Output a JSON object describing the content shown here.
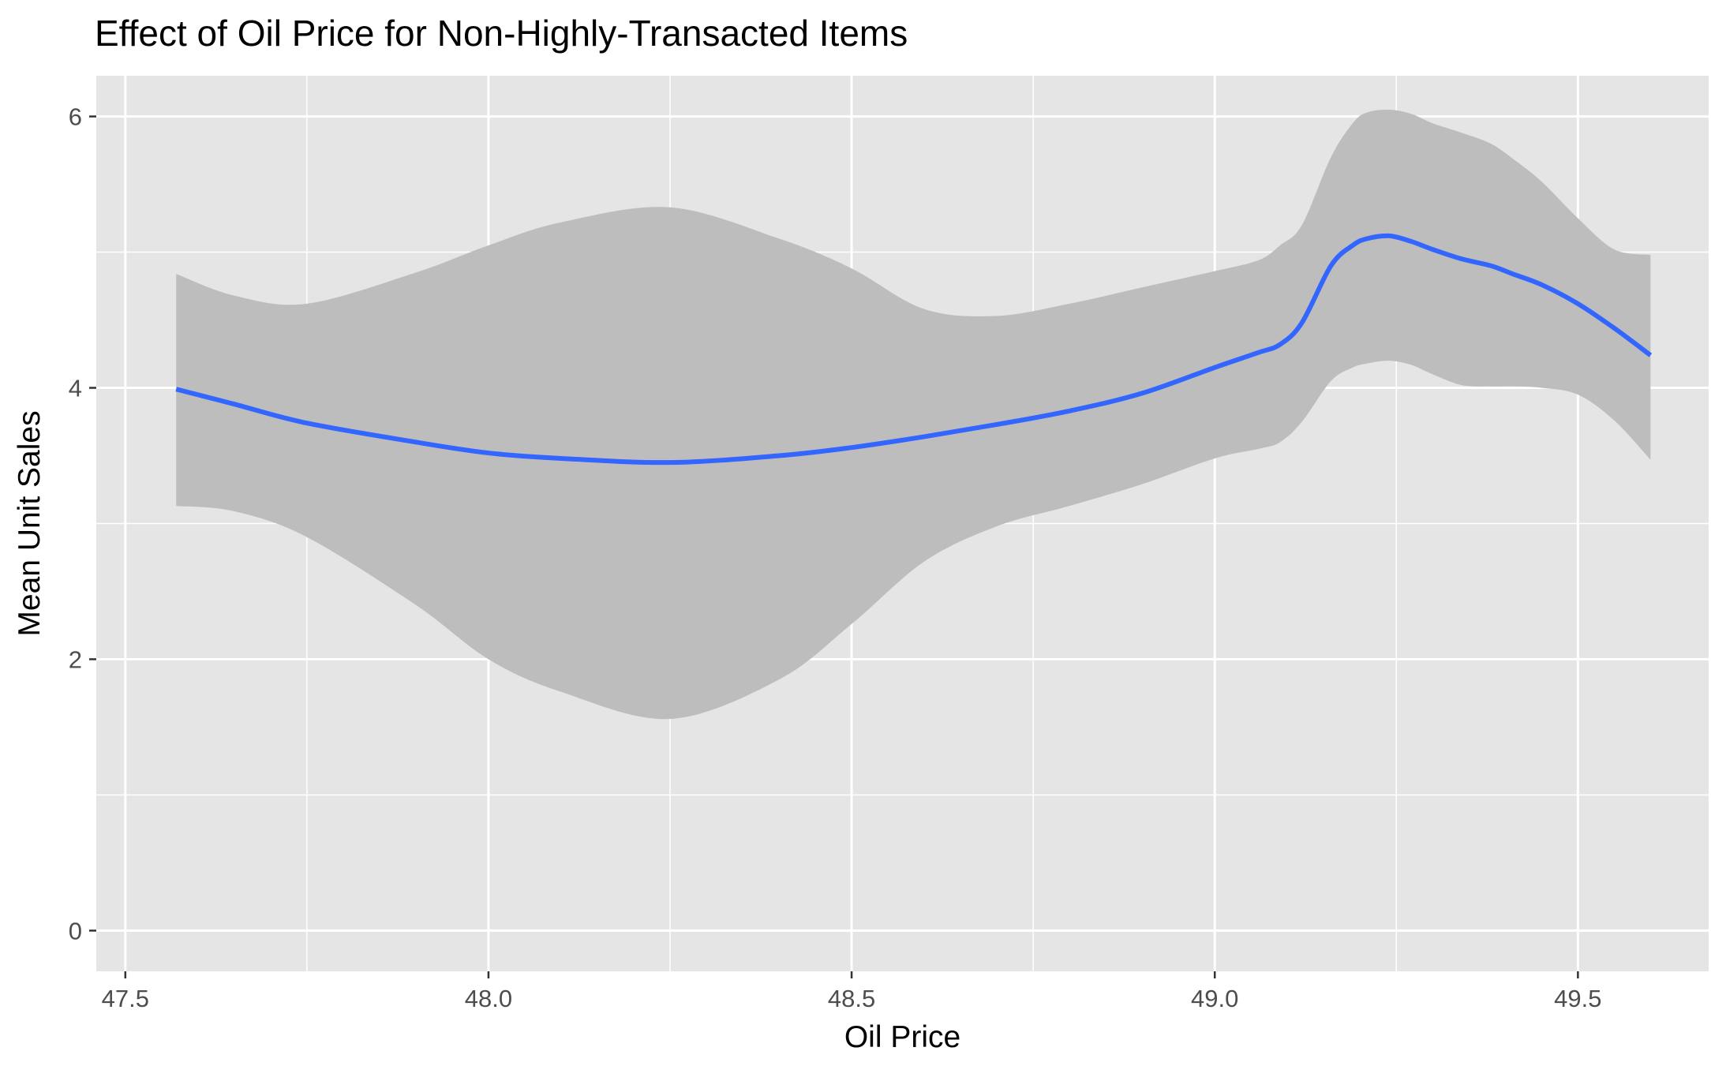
{
  "chart_data": {
    "type": "line",
    "title": "Effect of Oil Price for Non-Highly-Transacted Items",
    "xlabel": "Oil Price",
    "ylabel": "Mean Unit Sales",
    "xlim": [
      47.46,
      49.68
    ],
    "ylim": [
      -0.3,
      6.3
    ],
    "x_ticks": [
      47.5,
      48.0,
      48.5,
      49.0,
      49.5
    ],
    "x_tick_labels": [
      "47.5",
      "48.0",
      "48.5",
      "49.0",
      "49.5"
    ],
    "y_ticks": [
      0,
      2,
      4,
      6
    ],
    "y_tick_labels": [
      "0",
      "2",
      "4",
      "6"
    ],
    "grid": true,
    "legend": "none",
    "colors": {
      "panel_background": "#e5e5e5",
      "grid": "#ffffff",
      "line": "#3366ff",
      "ribbon": "#bdbdbd"
    },
    "series": [
      {
        "x": [
          47.57,
          47.65,
          47.75,
          47.9,
          48.0,
          48.1,
          48.25,
          48.4,
          48.5,
          48.6,
          48.7,
          48.8,
          48.9,
          49.0,
          49.06,
          49.09,
          49.12,
          49.16,
          49.19,
          49.21,
          49.24,
          49.27,
          49.3,
          49.34,
          49.38,
          49.41,
          49.45,
          49.5,
          49.55,
          49.6
        ],
        "y": [
          3.99,
          3.88,
          3.74,
          3.6,
          3.52,
          3.48,
          3.45,
          3.5,
          3.56,
          3.64,
          3.73,
          3.83,
          3.96,
          4.15,
          4.26,
          4.32,
          4.48,
          4.9,
          5.05,
          5.1,
          5.12,
          5.08,
          5.02,
          4.95,
          4.9,
          4.84,
          4.76,
          4.62,
          4.44,
          4.24
        ],
        "lower": [
          3.13,
          3.09,
          2.9,
          2.4,
          2.0,
          1.76,
          1.56,
          1.85,
          2.26,
          2.72,
          2.98,
          3.13,
          3.29,
          3.48,
          3.55,
          3.6,
          3.75,
          4.05,
          4.15,
          4.18,
          4.2,
          4.17,
          4.1,
          4.02,
          4.01,
          4.01,
          4.0,
          3.95,
          3.76,
          3.47
        ],
        "upper": [
          4.84,
          4.68,
          4.62,
          4.85,
          5.05,
          5.22,
          5.33,
          5.1,
          4.88,
          4.58,
          4.53,
          4.62,
          4.74,
          4.86,
          4.94,
          5.05,
          5.2,
          5.7,
          5.95,
          6.03,
          6.05,
          6.02,
          5.95,
          5.88,
          5.8,
          5.69,
          5.52,
          5.25,
          5.02,
          4.98
        ]
      }
    ]
  }
}
